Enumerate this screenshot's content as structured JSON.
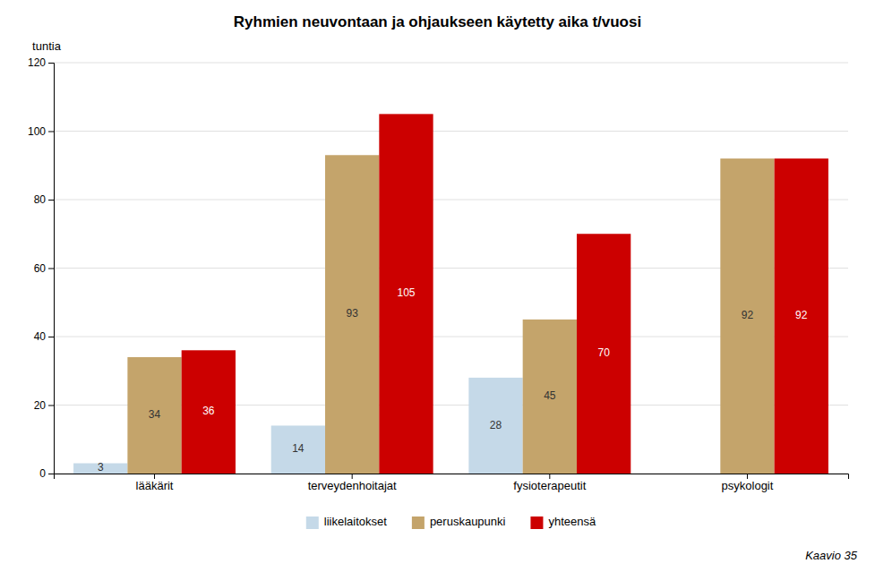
{
  "chart_data": {
    "type": "bar",
    "title": "Ryhmien neuvontaan ja ohjaukseen käytetty aika t/vuosi",
    "ylabel": "tuntia",
    "caption": "Kaavio 35",
    "categories": [
      "lääkärit",
      "terveydenhoitajat",
      "fysioterapeutit",
      "psykologit"
    ],
    "series": [
      {
        "name": "liikelaitokset",
        "color": "#C5D9E8",
        "values": [
          3,
          14,
          28,
          0
        ]
      },
      {
        "name": "peruskaupunki",
        "color": "#C4A46B",
        "values": [
          34,
          93,
          45,
          92
        ]
      },
      {
        "name": "yhteensä",
        "color": "#CC0000",
        "values": [
          36,
          105,
          70,
          92
        ]
      }
    ],
    "ylim": [
      0,
      120
    ],
    "yticks": [
      0,
      20,
      40,
      60,
      80,
      100,
      120
    ],
    "grid": true,
    "legend": "bottom",
    "data_labels": true
  }
}
